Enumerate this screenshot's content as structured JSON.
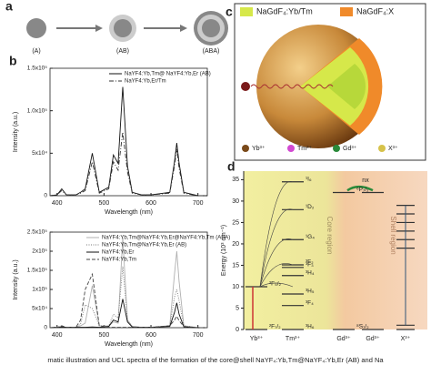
{
  "panel_letters": [
    "a",
    "b",
    "c",
    "d"
  ],
  "panel_a": {
    "labels": [
      "(A)",
      "(AB)",
      "(ABA)"
    ]
  },
  "chart_data": [
    {
      "type": "line",
      "ylabel": "Intensity (a.u.)",
      "xlabel": "Wavelength (nm)",
      "x": [
        385,
        400,
        410,
        420,
        440,
        450,
        460,
        475,
        490,
        510,
        520,
        530,
        540,
        550,
        560,
        580,
        600,
        640,
        650,
        655,
        660,
        670,
        700,
        720
      ],
      "xlim": [
        385,
        720
      ],
      "xticks": [
        400,
        500,
        600,
        700
      ],
      "ylim": [
        0,
        150000
      ],
      "yticks": [
        0,
        {
          "value": 50000,
          "label": "5x10⁴"
        },
        {
          "value": 100000,
          "label": "1.0x10⁵"
        },
        {
          "value": 150000,
          "label": "1.5x10⁵"
        }
      ],
      "series": [
        {
          "name": "NaYF4:Yb,Tm@ NaYF4:Yb,Er (AB)",
          "color": "#111111",
          "style": "solid",
          "values": [
            0,
            1000,
            8000,
            1000,
            1000,
            4000,
            8000,
            50000,
            4000,
            10000,
            48000,
            38000,
            128000,
            35000,
            4000,
            1000,
            1000,
            4000,
            40000,
            62000,
            38000,
            4000,
            0,
            0
          ]
        },
        {
          "name": "NaYF4:Yb,Er/Tm",
          "color": "#333333",
          "style": "dashdot",
          "values": [
            0,
            1000,
            6000,
            1000,
            1000,
            3000,
            6000,
            40000,
            3000,
            8000,
            40000,
            30000,
            75000,
            28000,
            3000,
            1000,
            1000,
            3000,
            35000,
            55000,
            32000,
            3000,
            0,
            0
          ]
        }
      ]
    },
    {
      "type": "line",
      "ylabel": "Intensity (a.u.)",
      "xlabel": "Wavelength (nm)",
      "x": [
        385,
        400,
        410,
        420,
        440,
        450,
        460,
        475,
        490,
        510,
        520,
        530,
        540,
        550,
        560,
        580,
        600,
        640,
        650,
        655,
        660,
        670,
        700,
        720
      ],
      "xlim": [
        385,
        720
      ],
      "xticks": [
        400,
        500,
        600,
        700
      ],
      "ylim": [
        0,
        250000
      ],
      "yticks": [
        0,
        {
          "value": 50000,
          "label": "5x10⁴"
        },
        {
          "value": 100000,
          "label": "1x10⁵"
        },
        {
          "value": 150000,
          "label": "1.5x10⁵"
        },
        {
          "value": 200000,
          "label": "2x10⁵"
        },
        {
          "value": 250000,
          "label": "2.5x10⁵"
        }
      ],
      "series": [
        {
          "name": "NaYF4:Yb,Tm@NaYF4:Yb,Er@NaYF4:Yb,Tm (ABA)",
          "color": "#b0b0b0",
          "style": "solid",
          "values": [
            0,
            1000,
            3000,
            1000,
            1000,
            5000,
            12000,
            110000,
            5000,
            4000,
            15000,
            12000,
            235000,
            20000,
            3000,
            1000,
            1000,
            5000,
            140000,
            200000,
            120000,
            5000,
            0,
            0
          ]
        },
        {
          "name": "NaYF4:Yb,Tm@NaYF4:Yb,Er (AB)",
          "color": "#777777",
          "style": "dotted",
          "values": [
            0,
            1000,
            3000,
            1000,
            1000,
            10000,
            60000,
            50000,
            5000,
            5000,
            35000,
            25000,
            160000,
            20000,
            3000,
            1000,
            1000,
            5000,
            80000,
            100000,
            70000,
            5000,
            0,
            0
          ]
        },
        {
          "name": "NaYF4:Yb,Er",
          "color": "#111111",
          "style": "solid",
          "values": [
            0,
            1000,
            2000,
            1000,
            1000,
            1000,
            1000,
            2000,
            1000,
            3000,
            20000,
            15000,
            75000,
            15000,
            2000,
            1000,
            1000,
            3000,
            40000,
            65000,
            35000,
            2000,
            0,
            0
          ]
        },
        {
          "name": "NaYF4:Yb,Tm",
          "color": "#444444",
          "style": "dashed",
          "values": [
            0,
            1000,
            5000,
            1000,
            1000,
            20000,
            100000,
            140000,
            5000,
            1000,
            1000,
            1000,
            1000,
            1000,
            1000,
            1000,
            1000,
            5000,
            20000,
            30000,
            18000,
            3000,
            0,
            0
          ]
        }
      ]
    },
    {
      "type": "energy-levels",
      "ylabel": "Energy (10³ cm⁻¹)",
      "ylim": [
        0,
        37
      ],
      "yticks": [
        0,
        5,
        10,
        15,
        20,
        25,
        30,
        35
      ],
      "region_labels": [
        "Core region",
        "Shell region"
      ],
      "transfer_label": "nx",
      "ions": [
        {
          "name": "Yb³⁺",
          "levels": [
            {
              "label": "²F₇/₂",
              "value": 0
            },
            {
              "label": "²F₅/₂",
              "value": 10
            }
          ]
        },
        {
          "name": "Tm³⁺",
          "levels": [
            {
              "label": "³H₆",
              "value": 0
            },
            {
              "label": "³F₄",
              "value": 5.6
            },
            {
              "label": "³H₅",
              "value": 8.3
            },
            {
              "label": "³H₄",
              "value": 12.6
            },
            {
              "label": "³F₃",
              "value": 14.5
            },
            {
              "label": "³F₂",
              "value": 15.1
            },
            {
              "label": "¹G₄",
              "value": 21
            },
            {
              "label": "¹D₂",
              "value": 28
            },
            {
              "label": "¹I₆",
              "value": 34.5
            }
          ]
        },
        {
          "name": "Gd³⁺",
          "levels": [
            {
              "label": "⁸S₇/₂",
              "value": 0
            },
            {
              "label": "⁶P₇/₂",
              "value": 32
            }
          ]
        },
        {
          "name": "Gd³⁺",
          "levels": [
            {
              "value": 0
            },
            {
              "value": 32
            }
          ]
        },
        {
          "name": "X³⁺",
          "levels": [
            {
              "value": 0
            },
            {
              "value": 1
            },
            {
              "value": 19
            },
            {
              "value": 21
            },
            {
              "value": 23
            },
            {
              "value": 25
            },
            {
              "value": 27
            },
            {
              "value": 29
            }
          ]
        }
      ]
    }
  ],
  "panel_c": {
    "legend": [
      "NaGdF₄:Yb/Tm",
      "NaGdF₄:X"
    ],
    "ions": [
      "Yb³⁺",
      "Tm³⁺",
      "Gd³⁺",
      "X³⁺"
    ]
  },
  "caption": "matic illustration and UCL spectra of the formation of the core@shell NaYF₄:Yb,Tm@NaYF₄:Yb,Er (AB) and Na"
}
